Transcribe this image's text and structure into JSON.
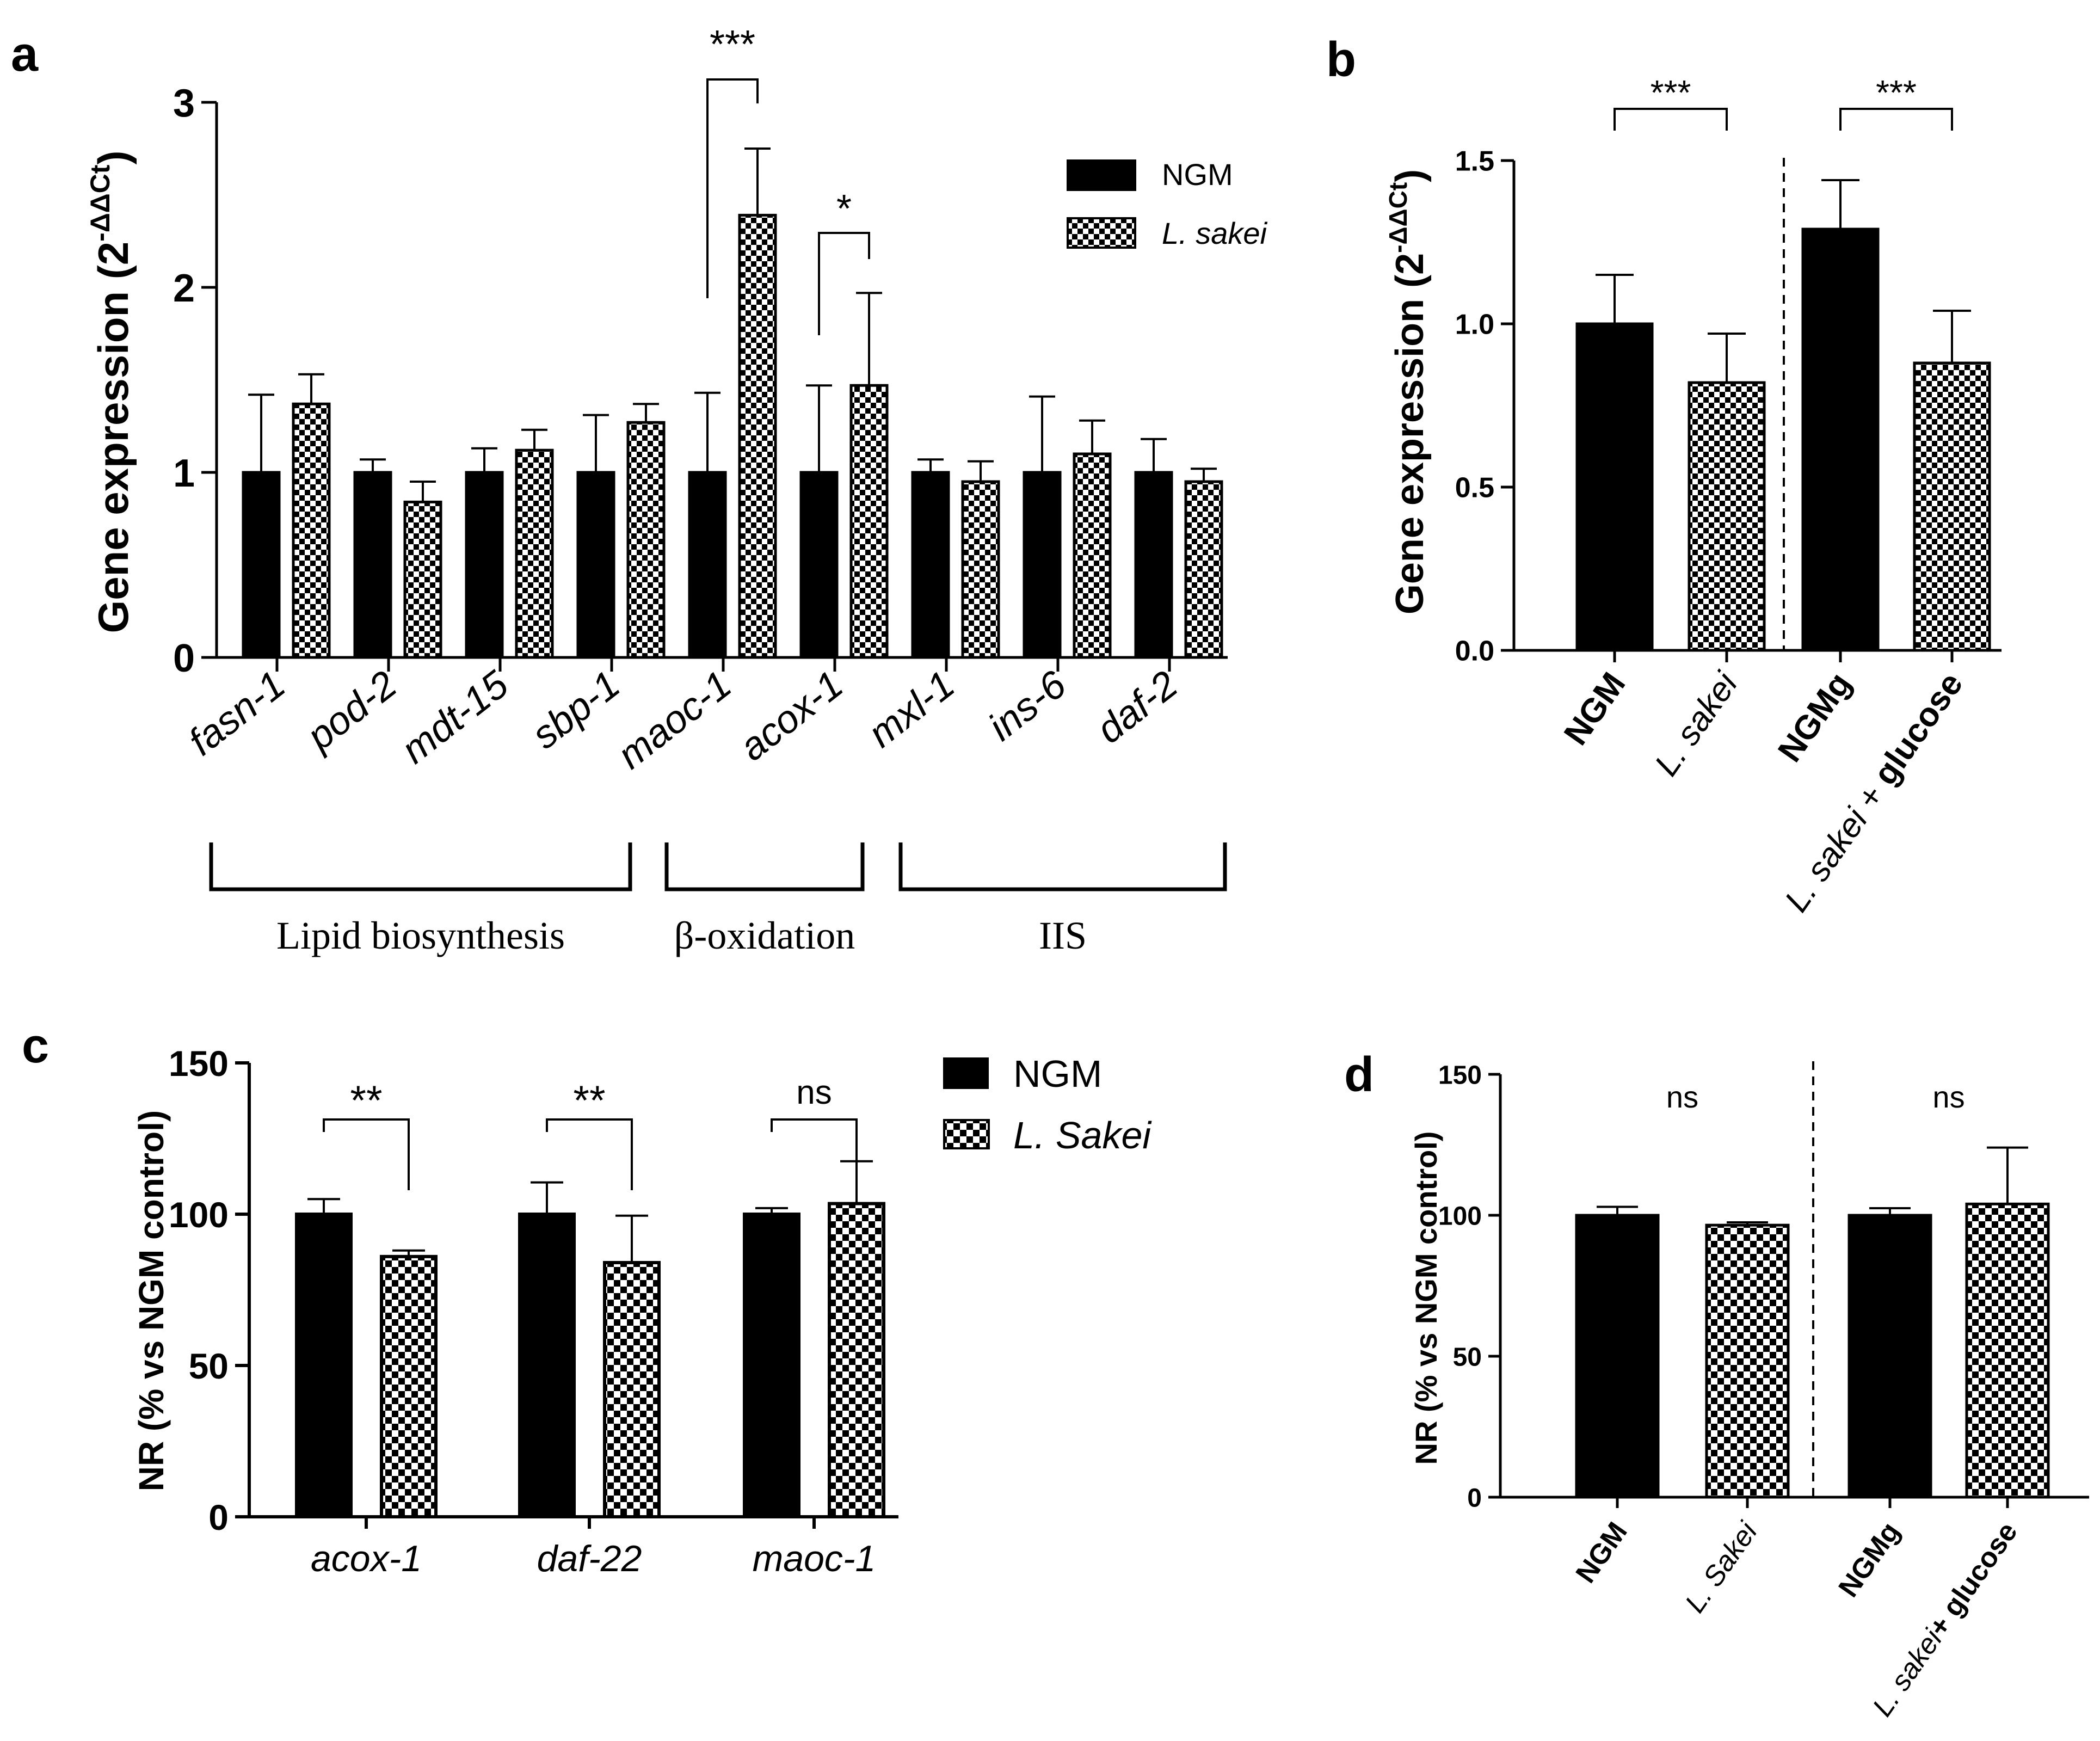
{
  "colors": {
    "ngm": "#000000",
    "lsakei_checker": "#000000",
    "background": "#ffffff"
  },
  "chart_data": [
    {
      "panel": "a",
      "type": "bar",
      "ylabel": "Gene expression (2-ΔΔCt)",
      "ylabel_main": "Gene expression (2",
      "ylabel_sup": "-ΔΔCt",
      "ylabel_close": ")",
      "ylim": [
        0,
        3
      ],
      "yticks": [
        "0",
        "1",
        "2",
        "3"
      ],
      "ytick_values": [
        0,
        1,
        2,
        3
      ],
      "categories": [
        "fasn-1",
        "pod-2",
        "mdt-15",
        "sbp-1",
        "maoc-1",
        "acox-1",
        "mxl-1",
        "ins-6",
        "daf-2"
      ],
      "series": [
        {
          "name": "NGM",
          "values": [
            1.0,
            1.0,
            1.0,
            1.0,
            1.0,
            1.0,
            1.0,
            1.0,
            1.0
          ],
          "errors": [
            0.42,
            0.07,
            0.13,
            0.31,
            0.43,
            0.47,
            0.07,
            0.41,
            0.18
          ]
        },
        {
          "name": "L. sakei",
          "values": [
            1.37,
            0.84,
            1.12,
            1.27,
            2.39,
            1.47,
            0.95,
            1.1,
            0.95
          ],
          "errors": [
            0.16,
            0.11,
            0.11,
            0.1,
            0.36,
            0.5,
            0.11,
            0.18,
            0.07
          ]
        }
      ],
      "significance": [
        {
          "category": "maoc-1",
          "label": "***"
        },
        {
          "category": "acox-1",
          "label": "*"
        }
      ],
      "groups": [
        {
          "label": "Lipid biosynthesis",
          "from": "fasn-1",
          "to": "sbp-1"
        },
        {
          "label": "β-oxidation",
          "from": "maoc-1",
          "to": "acox-1"
        },
        {
          "label": "IIS",
          "from": "mxl-1",
          "to": "daf-2"
        }
      ],
      "legend": [
        "NGM",
        "L. sakei"
      ],
      "legend_position": "top-right"
    },
    {
      "panel": "b",
      "type": "bar",
      "ylabel_main": "Gene expression (2",
      "ylabel_sup": "-ΔΔCt",
      "ylabel_close": ")",
      "ylim": [
        0,
        1.5
      ],
      "yticks": [
        "0.0",
        "0.5",
        "1.0",
        "1.5"
      ],
      "ytick_values": [
        0,
        0.5,
        1.0,
        1.5
      ],
      "categories": [
        {
          "parts": [
            {
              "text": "NGM",
              "style": "bold"
            }
          ]
        },
        {
          "parts": [
            {
              "text": "L. sakei",
              "style": "italic"
            }
          ]
        },
        {
          "parts": [
            {
              "text": "NGMg",
              "style": "bold"
            }
          ]
        },
        {
          "parts": [
            {
              "text": "L. sakei",
              "style": "italic"
            },
            {
              "text": " + ",
              "style": "normal"
            },
            {
              "text": "glucose",
              "style": "bold"
            }
          ]
        }
      ],
      "values": [
        1.0,
        0.82,
        1.29,
        0.88
      ],
      "errors": [
        0.15,
        0.15,
        0.15,
        0.16
      ],
      "fills": [
        "NGM",
        "L. sakei",
        "NGM",
        "L. sakei"
      ],
      "significance": [
        {
          "between": [
            0,
            1
          ],
          "label": "***"
        },
        {
          "between": [
            2,
            3
          ],
          "label": "***"
        }
      ],
      "divider_after": 1
    },
    {
      "panel": "c",
      "type": "bar",
      "ylabel": "NR  (% vs  NGM control)",
      "ylim": [
        0,
        150
      ],
      "yticks": [
        "0",
        "50",
        "100",
        "150"
      ],
      "ytick_values": [
        0,
        50,
        100,
        150
      ],
      "categories": [
        "acox-1",
        "daf-22",
        "maoc-1"
      ],
      "series": [
        {
          "name": "NGM",
          "values": [
            100,
            100,
            100
          ],
          "errors": [
            5,
            10.5,
            2
          ]
        },
        {
          "name": "L. Sakei",
          "values": [
            86,
            84,
            103.5
          ],
          "errors": [
            2,
            15.5,
            14
          ]
        }
      ],
      "significance": [
        {
          "category": "acox-1",
          "label": "**"
        },
        {
          "category": "daf-22",
          "label": "**"
        },
        {
          "category": "maoc-1",
          "label": "ns"
        }
      ],
      "legend": [
        "NGM",
        "L. Sakei"
      ],
      "legend_position": "top-right"
    },
    {
      "panel": "d",
      "type": "bar",
      "ylabel": "NR (% vs NGM control)",
      "ylim": [
        0,
        150
      ],
      "yticks": [
        "0",
        "50",
        "100",
        "150"
      ],
      "ytick_values": [
        0,
        50,
        100,
        150
      ],
      "categories": [
        {
          "parts": [
            {
              "text": "NGM",
              "style": "bold"
            }
          ]
        },
        {
          "parts": [
            {
              "text": "L. Sakei",
              "style": "italic"
            }
          ]
        },
        {
          "parts": [
            {
              "text": "NGMg",
              "style": "bold"
            }
          ]
        },
        {
          "parts": [
            {
              "text": "L. sakei",
              "style": "italic"
            },
            {
              "text": "+ glucose",
              "style": "bold"
            }
          ]
        }
      ],
      "values": [
        100,
        96.5,
        100,
        104
      ],
      "errors": [
        3,
        1,
        2.5,
        20
      ],
      "fills": [
        "NGM",
        "L. sakei",
        "NGM",
        "L. sakei"
      ],
      "significance": [
        {
          "position": 0.5,
          "label": "ns"
        },
        {
          "position": 2.5,
          "label": "ns"
        }
      ],
      "divider_after": 1
    }
  ]
}
